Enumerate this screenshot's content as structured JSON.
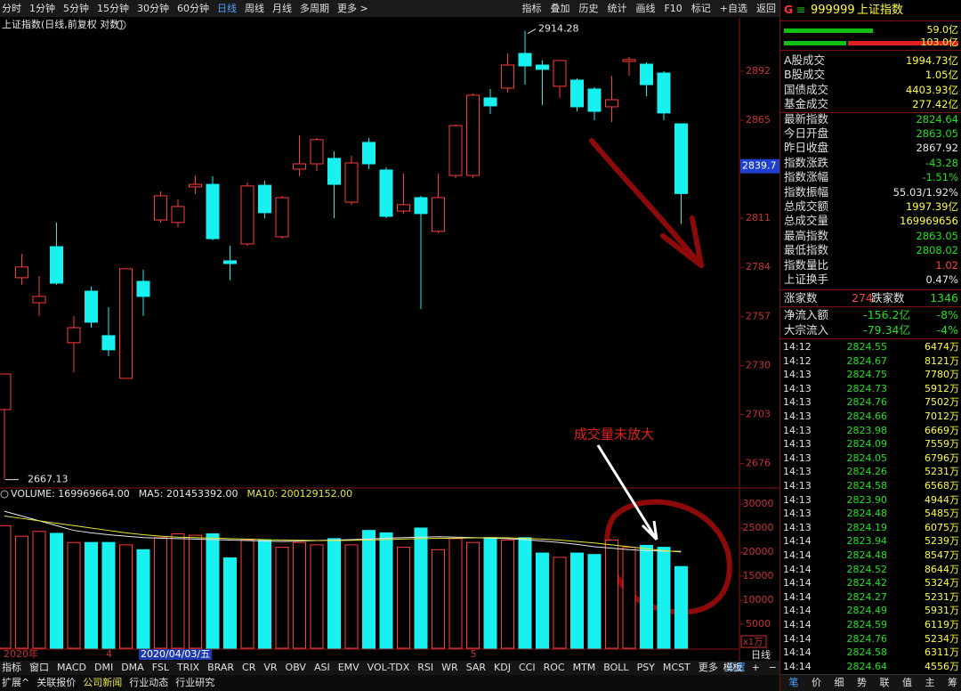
{
  "toolbar": {
    "periods": [
      "分时",
      "1分钟",
      "5分钟",
      "15分钟",
      "30分钟",
      "60分钟",
      "日线",
      "周线",
      "月线",
      "多周期",
      "更多 >"
    ],
    "tools": [
      "指标",
      "叠加",
      "历史",
      "统计",
      "画线",
      "F10",
      "标记",
      "+自选",
      "返回"
    ]
  },
  "chart": {
    "title": "上证指数(日线,前复权 对数)",
    "ylim": [
      2664,
      2916.5
    ],
    "yticks": [
      2676,
      2703,
      2730,
      2757,
      2784,
      2811,
      2838,
      2865,
      2892
    ],
    "crosshair": 2839.7,
    "high_mark": 2914.28,
    "low_mark": 2667.13,
    "up_color": "#ff3a3a",
    "down_color": "#19f0f0",
    "candles": [
      [
        2705.7,
        2725.3,
        2667.13,
        2725.3
      ],
      [
        2778.3,
        2791.5,
        2774.4,
        2784.2
      ],
      [
        2764.5,
        2779.3,
        2757.2,
        2768.0
      ],
      [
        2795.4,
        2808.7,
        2774.4,
        2775.3
      ],
      [
        2742.5,
        2757.2,
        2726.3,
        2750.8
      ],
      [
        2770.9,
        2773.4,
        2750.8,
        2753.8
      ],
      [
        2746.4,
        2762.1,
        2735.1,
        2738.6
      ],
      [
        2722.9,
        2783.2,
        2722.9,
        2783.2
      ],
      [
        2776.3,
        2782.7,
        2757.2,
        2768.0
      ],
      [
        2810.1,
        2825.8,
        2808.7,
        2823.4
      ],
      [
        2808.7,
        2821.4,
        2806.2,
        2817.5
      ],
      [
        2828.3,
        2834.6,
        2824.4,
        2829.7
      ],
      [
        2829.7,
        2834.2,
        2798.9,
        2799.8
      ],
      [
        2787.6,
        2795.9,
        2776.8,
        2786.1
      ],
      [
        2796.9,
        2830.7,
        2795.9,
        2828.8
      ],
      [
        2829.2,
        2831.7,
        2811.1,
        2814.1
      ],
      [
        2800.8,
        2823.4,
        2799.8,
        2822.4
      ],
      [
        2838.1,
        2856.7,
        2834.2,
        2841.0
      ],
      [
        2841.0,
        2855.2,
        2837.1,
        2854.3
      ],
      [
        2844.0,
        2847.9,
        2811.1,
        2829.7
      ],
      [
        2819.9,
        2845.4,
        2818.5,
        2841.5
      ],
      [
        2852.8,
        2855.2,
        2838.1,
        2841.0
      ],
      [
        2837.6,
        2839.1,
        2811.1,
        2812.1
      ],
      [
        2815.0,
        2835.6,
        2813.6,
        2818.5
      ],
      [
        2822.4,
        2823.4,
        2761.1,
        2813.6
      ],
      [
        2803.8,
        2835.6,
        2802.8,
        2822.4
      ],
      [
        2834.6,
        2862.6,
        2833.2,
        2862.1
      ],
      [
        2834.6,
        2879.7,
        2833.2,
        2878.8
      ],
      [
        2877.3,
        2882.2,
        2868.5,
        2872.9
      ],
      [
        2882.7,
        2901.8,
        2880.2,
        2895.4
      ],
      [
        2901.8,
        2914.28,
        2884.6,
        2894.9
      ],
      [
        2895.4,
        2897.9,
        2873.4,
        2893.0
      ],
      [
        2883.7,
        2897.9,
        2877.3,
        2897.9
      ],
      [
        2887.1,
        2888.1,
        2869.9,
        2872.4
      ],
      [
        2882.2,
        2883.2,
        2865.0,
        2869.9
      ],
      [
        2872.4,
        2889.5,
        2864.0,
        2876.3
      ],
      [
        2897.4,
        2899.8,
        2889.5,
        2898.4
      ],
      [
        2895.9,
        2896.9,
        2878.3,
        2884.6
      ],
      [
        2891.0,
        2892.0,
        2865.0,
        2869.0
      ],
      [
        2863.05,
        2863.05,
        2808.02,
        2824.64
      ]
    ]
  },
  "volume": {
    "legend": [
      "VOLUME: 169969664.00",
      "MA5: 201453392.00",
      "MA10: 200129152.00"
    ],
    "legend_colors": [
      "#e8e8e8",
      "#e8e8e8",
      "#e6e63c"
    ],
    "ylim": [
      0,
      32590
    ],
    "yticks": [
      5000,
      10000,
      15000,
      20000,
      25000,
      30000
    ],
    "unit": "x1万",
    "values": [
      25500,
      23300,
      24300,
      23900,
      22000,
      22000,
      22000,
      21500,
      20500,
      23000,
      23800,
      23500,
      23800,
      18800,
      22500,
      22500,
      21000,
      22000,
      21500,
      22800,
      21500,
      24500,
      24000,
      21000,
      25000,
      20500,
      22800,
      22000,
      23000,
      22500,
      23000,
      19800,
      18900,
      19800,
      19500,
      22500,
      21000,
      21400,
      21000,
      16997
    ],
    "ma5": [
      28500,
      27500,
      26500,
      25500,
      24500,
      24000,
      23600,
      23300,
      23000,
      22900,
      22800,
      22700,
      22600,
      22500,
      22400,
      22300,
      22200,
      22300,
      22400,
      22500,
      22600,
      22700,
      22900,
      23000,
      23100,
      23200,
      23100,
      23000,
      22900,
      22800,
      22600,
      22300,
      22000,
      21600,
      21100,
      20800,
      20500,
      20300,
      20200,
      20145
    ],
    "ma10": [
      27500,
      27000,
      26500,
      26000,
      25500,
      25000,
      24500,
      24000,
      23600,
      23300,
      23100,
      23000,
      22900,
      22800,
      22700,
      22600,
      22500,
      22450,
      22400,
      22400,
      22450,
      22500,
      22600,
      22700,
      22800,
      22850,
      22900,
      22950,
      23000,
      22950,
      22850,
      22700,
      22500,
      22200,
      21900,
      21500,
      21100,
      20700,
      20300,
      20013
    ],
    "categories": [
      "2020年",
      null,
      null,
      null,
      null,
      null,
      "4",
      null,
      "2020/04/03/五",
      null,
      null,
      null,
      null,
      null,
      null,
      null,
      null,
      null,
      null,
      null,
      null,
      null,
      null,
      null,
      null,
      null,
      null,
      "5",
      null,
      null,
      null,
      null,
      null,
      null,
      null,
      null,
      null,
      null,
      null,
      null
    ]
  },
  "annotation": "成交量未放大",
  "tabs": [
    "指标",
    "窗口",
    "MACD",
    "DMI",
    "DMA",
    "FSL",
    "TRIX",
    "BRAR",
    "CR",
    "VR",
    "OBV",
    "ASI",
    "EMV",
    "VOL-TDX",
    "RSI",
    "WR",
    "SAR",
    "KDJ",
    "CCI",
    "ROC",
    "MTM",
    "BOLL",
    "PSY",
    "MCST",
    "更多",
    "设置"
  ],
  "tabs_right": [
    "模板",
    "+",
    "−"
  ],
  "period_label": "日线",
  "bottom_links": [
    "扩展^",
    "关联报价",
    "公司新闻",
    "行业动态",
    "行业研究"
  ],
  "quote": {
    "prefix": "G",
    "code": "999999",
    "name": "上证指数",
    "bar_labels": [
      "59.0亿",
      "103.0亿"
    ],
    "stats": [
      [
        "A股成交",
        "1994.73亿",
        "#ffff40"
      ],
      [
        "B股成交",
        "1.05亿",
        "#ffff40"
      ],
      [
        "国债成交",
        "4403.93亿",
        "#ffff40"
      ],
      [
        "基金成交",
        "277.42亿",
        "#ffff40"
      ],
      [
        "最新指数",
        "2824.64",
        "#20e020"
      ],
      [
        "今日开盘",
        "2863.05",
        "#20e020"
      ],
      [
        "昨日收盘",
        "2867.92",
        "#e8e8e8"
      ],
      [
        "指数涨跌",
        "-43.28",
        "#20e020"
      ],
      [
        "指数涨幅",
        "-1.51%",
        "#20e020"
      ],
      [
        "指数振幅",
        "55.03/1.92%",
        "#e8e8e8"
      ],
      [
        "总成交额",
        "1997.39亿",
        "#ffff40"
      ],
      [
        "总成交量",
        "169969656",
        "#ffff40"
      ],
      [
        "最高指数",
        "2863.05",
        "#20e020"
      ],
      [
        "最低指数",
        "2808.02",
        "#20e020"
      ],
      [
        "指数量比",
        "1.02",
        "#ff4040"
      ],
      [
        "上证换手",
        "0.47%",
        "#e8e8e8"
      ]
    ],
    "breadth": [
      "涨家数",
      "274",
      "跌家数",
      "1346"
    ],
    "flows": [
      [
        "净流入额",
        "-156.2亿",
        "-8%"
      ],
      [
        "大宗流入",
        "-79.34亿",
        "-4%"
      ]
    ],
    "ticks": [
      [
        "14:12",
        "2824.55",
        "6474万"
      ],
      [
        "14:12",
        "2824.67",
        "8121万"
      ],
      [
        "14:13",
        "2824.75",
        "7780万"
      ],
      [
        "14:13",
        "2824.73",
        "5912万"
      ],
      [
        "14:13",
        "2824.76",
        "7502万"
      ],
      [
        "14:13",
        "2824.66",
        "7012万"
      ],
      [
        "14:13",
        "2823.98",
        "6669万"
      ],
      [
        "14:13",
        "2824.09",
        "7559万"
      ],
      [
        "14:13",
        "2824.05",
        "6796万"
      ],
      [
        "14:13",
        "2824.26",
        "5231万"
      ],
      [
        "14:13",
        "2824.58",
        "6568万"
      ],
      [
        "14:13",
        "2823.90",
        "4944万"
      ],
      [
        "14:13",
        "2824.48",
        "5485万"
      ],
      [
        "14:13",
        "2824.19",
        "6075万"
      ],
      [
        "14:14",
        "2823.94",
        "5239万"
      ],
      [
        "14:14",
        "2824.48",
        "8547万"
      ],
      [
        "14:14",
        "2824.52",
        "8644万"
      ],
      [
        "14:14",
        "2824.42",
        "5324万"
      ],
      [
        "14:14",
        "2824.27",
        "5231万"
      ],
      [
        "14:14",
        "2824.49",
        "5931万"
      ],
      [
        "14:14",
        "2824.59",
        "6119万"
      ],
      [
        "14:14",
        "2824.76",
        "5234万"
      ],
      [
        "14:14",
        "2824.58",
        "6311万"
      ],
      [
        "14:14",
        "2824.64",
        "4556万"
      ]
    ],
    "side_tabs": [
      "笔",
      "价",
      "细",
      "势",
      "联",
      "值",
      "主",
      "筹"
    ]
  }
}
